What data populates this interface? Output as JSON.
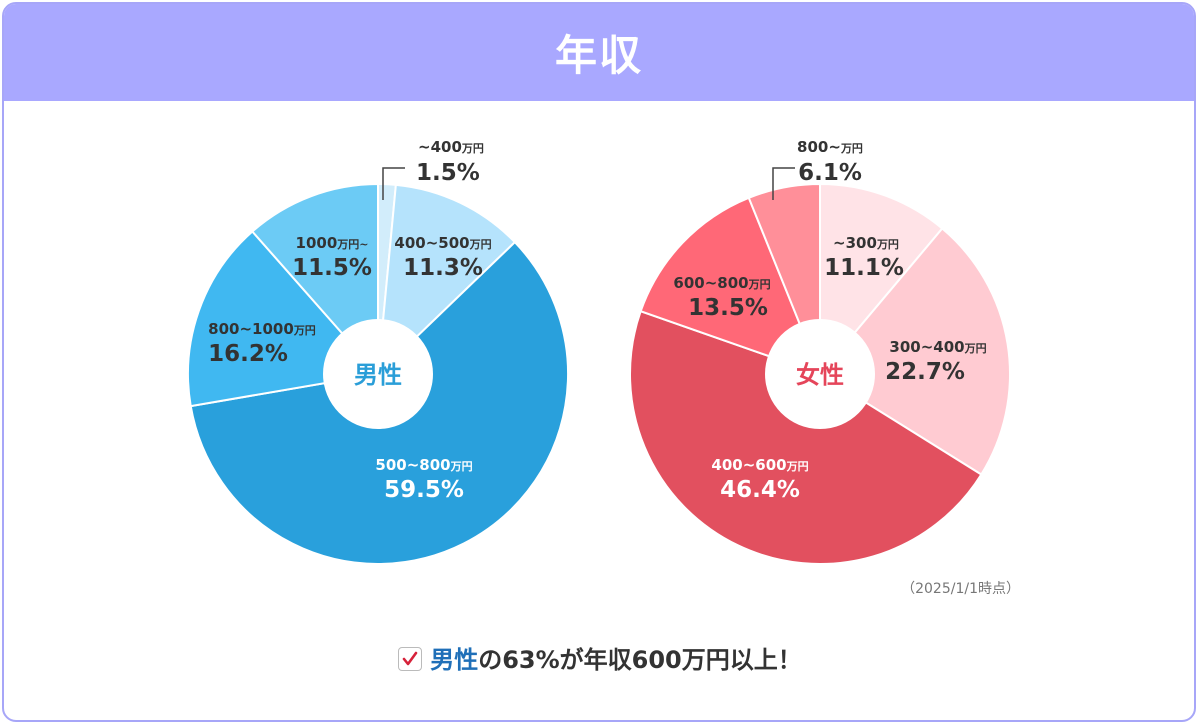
{
  "header": {
    "title": "年収"
  },
  "date_note": "（2025/1/1時点）",
  "summary": {
    "icon": "checkbox-icon",
    "highlight": "男性",
    "rest": "の63%が年収600万円以上！"
  },
  "chart_data": [
    {
      "type": "pie",
      "center_label": "男性",
      "center_color": "#2a9ed8",
      "slices": [
        {
          "amount": "~400",
          "unit": "万円",
          "value": 1.5,
          "label": "1.5%",
          "color": "#d2edfb"
        },
        {
          "amount": "400~500",
          "unit": "万円",
          "value": 11.3,
          "label": "11.3%",
          "color": "#b5e3fc"
        },
        {
          "amount": "500~800",
          "unit": "万円",
          "value": 59.5,
          "label": "59.5%",
          "color": "#29a0dc"
        },
        {
          "amount": "800~1000",
          "unit": "万円",
          "value": 16.2,
          "label": "16.2%",
          "color": "#40b8f1"
        },
        {
          "amount": "1000",
          "unit": "万円~",
          "value": 11.5,
          "label": "11.5%",
          "color": "#6ccbf5"
        }
      ]
    },
    {
      "type": "pie",
      "center_label": "女性",
      "center_color": "#e5455a",
      "slices": [
        {
          "amount": "~300",
          "unit": "万円",
          "value": 11.1,
          "label": "11.1%",
          "color": "#ffe3e7"
        },
        {
          "amount": "300~400",
          "unit": "万円",
          "value": 22.7,
          "label": "22.7%",
          "color": "#ffcbd2"
        },
        {
          "amount": "400~600",
          "unit": "万円",
          "value": 46.4,
          "label": "46.4%",
          "color": "#e2505f"
        },
        {
          "amount": "600~800",
          "unit": "万円",
          "value": 13.5,
          "label": "13.5%",
          "color": "#ff6877"
        },
        {
          "amount": "800~",
          "unit": "万円",
          "value": 6.1,
          "label": "6.1%",
          "color": "#ff8f99"
        }
      ]
    }
  ]
}
